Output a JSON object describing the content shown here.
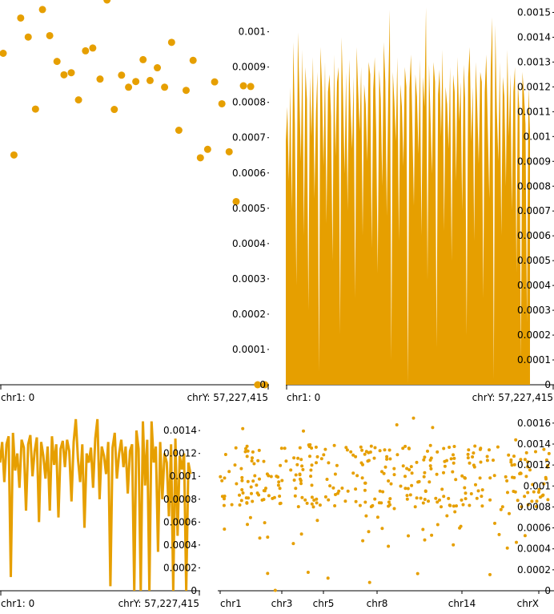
{
  "accent_color": "#e69f00",
  "chart_data": [
    {
      "type": "scatter",
      "x_range_labels": [
        "chr1: 0",
        "chrY: 57,227,415"
      ],
      "ylim": [
        0,
        0.00109
      ],
      "yticks": [
        0,
        0.0001,
        0.0002,
        0.0003,
        0.0004,
        0.0005,
        0.0006,
        0.0007,
        0.0008,
        0.0009,
        0.001
      ],
      "ytick_labels": [
        "0",
        "0.0001",
        "0.0002",
        "0.0003",
        "0.0004",
        "0.0005",
        "0.0006",
        "0.0007",
        "0.0008",
        "0.0009",
        "0.001"
      ],
      "grid": false,
      "x": [
        0.0,
        0.04,
        0.065,
        0.093,
        0.12,
        0.146,
        0.173,
        0.2,
        0.226,
        0.253,
        0.28,
        0.306,
        0.333,
        0.36,
        0.386,
        0.413,
        0.44,
        0.466,
        0.493,
        0.52,
        0.546,
        0.573,
        0.6,
        0.626,
        0.653,
        0.68,
        0.706,
        0.733,
        0.76,
        0.786,
        0.813,
        0.84,
        0.866,
        0.893,
        0.92,
        0.946,
        0.973
      ],
      "y": [
        0.000939,
        0.000651,
        0.001039,
        0.000985,
        0.000781,
        0.001063,
        0.000989,
        0.000916,
        0.000878,
        0.000884,
        0.000807,
        0.000946,
        0.000954,
        0.000866,
        0.00109,
        0.00078,
        0.000877,
        0.000843,
        0.000859,
        0.000921,
        0.000862,
        0.000898,
        0.000843,
        0.00097,
        0.000721,
        0.000834,
        0.000919,
        0.000643,
        0.000667,
        0.000858,
        0.000796,
        0.00066,
        0.000519,
        0.000847,
        0.000845,
        0.0,
        0.0
      ]
    },
    {
      "type": "area",
      "x_range_labels": [
        "chr1: 0",
        "chrY: 57,227,415"
      ],
      "ylim": [
        0,
        0.00155
      ],
      "yticks": [
        0,
        0.0001,
        0.0002,
        0.0003,
        0.0004,
        0.0005,
        0.0006,
        0.0007,
        0.0008,
        0.0009,
        0.001,
        0.0011,
        0.0012,
        0.0013,
        0.0014,
        0.0015
      ],
      "ytick_labels": [
        "0",
        "0.0001",
        "0.0002",
        "0.0003",
        "0.0004",
        "0.0005",
        "0.0006",
        "0.0007",
        "0.0008",
        "0.0009",
        "0.001",
        "0.0011",
        "0.0012",
        "0.0013",
        "0.0014",
        "0.0015"
      ],
      "grid": false,
      "values": [
        0.00098,
        0.00112,
        0.00082,
        0.0012,
        0.0007,
        0.00138,
        0.00105,
        0.0004,
        0.00142,
        0.00118,
        0.0009,
        0.00135,
        0.0006,
        0.00128,
        0.00115,
        0.0003,
        0.00124,
        0.001,
        0.00132,
        0.00075,
        0.0011,
        0.00126,
        5e-05,
        0.00136,
        0.0012,
        0.00088,
        0.0013,
        0.00065,
        0.00118,
        0.00125,
        0.00108,
        0.0005,
        0.00133,
        0.00092,
        0.00122,
        0.00128,
        0.0002,
        0.0014,
        0.00116,
        0.00085,
        0.00126,
        0.0007,
        0.00131,
        0.0011,
        0.00095,
        0.00124,
        0.00035,
        0.00136,
        0.00118,
        0.00102,
        0.00128,
        0.0006,
        0.00121,
        0.00113,
        0.0009,
        0.0013,
        0.00125,
        0.00055,
        0.00119,
        0.00132,
        0.001,
        0.00045,
        0.00127,
        0.00115,
        0.0008,
        0.00138,
        0.00122,
        0.00068,
        0.00118,
        0.00151,
        0.0001,
        0.00126,
        0.00114,
        0.00098,
        0.00132,
        0.00058,
        0.00121,
        0.00112,
        0.00088,
        0.00128,
        0.0012,
        0.0,
        0.00119,
        0.00133,
        0.00104,
        0.00072,
        0.00125,
        0.00116,
        0.00093,
        0.00131,
        0.0006,
        0.00124,
        0.00112,
        0.00152,
        0.00042,
        0.00129,
        0.00108,
        0.00085,
        0.0013,
        0.00122,
        0.00015,
        0.00117,
        0.00127,
        0.001,
        0.00135,
        0.00062,
        0.0012,
        0.00113,
        0.00095,
        0.00128,
        0.0005,
        0.00125,
        0.00118,
        0.00082,
        0.00132,
        0.00106,
        0.00122,
        0.0007,
        0.00129,
        0.00115,
        0.0002,
        0.00124,
        0.00136,
        0.00098,
        0.0012,
        0.00058,
        0.0013,
        0.00112,
        0.00089,
        0.00126,
        0.00122,
        0.00035,
        0.00118,
        0.00133,
        0.00103,
        0.00075,
        0.00127,
        0.00148,
        2e-05,
        0.00145,
        0.0011,
        0.0009,
        0.0013,
        0.0006,
        0.00124,
        0.00116,
        0.0008,
        0.00135,
        0.001,
        0.00125,
        0.0007,
        0.00118,
        0.00128,
        0.00045,
        0.00122,
        0.0011,
        0.0001,
        0.00126,
        0.00117,
        0.00105,
        0.00025,
        0.0012,
        0.00102
      ]
    },
    {
      "type": "line",
      "x_range_labels": [
        "chr1: 0",
        "chrY: 57,227,415"
      ],
      "ylim": [
        0,
        0.00152
      ],
      "yticks": [
        0,
        0.0002,
        0.0004,
        0.0006,
        0.0008,
        0.001,
        0.0012,
        0.0014
      ],
      "ytick_labels": [
        "0",
        "0.0002",
        "0.0004",
        "0.0006",
        "0.0008",
        "0.001",
        "0.0012",
        "0.0014"
      ],
      "grid": false,
      "values": [
        0.00112,
        0.0013,
        0.00095,
        0.00128,
        0.00135,
        0.00012,
        0.00138,
        0.00105,
        0.0012,
        0.0009,
        0.00132,
        0.00125,
        0.0007,
        0.00128,
        0.00136,
        0.001,
        0.00122,
        0.00134,
        0.0006,
        0.0013,
        0.00118,
        0.00098,
        0.00126,
        0.0007,
        0.00135,
        0.0011,
        0.00128,
        0.00064,
        0.00124,
        0.00131,
        0.00108,
        0.00132,
        0.00122,
        0.00078,
        0.0013,
        0.0015,
        0.00115,
        0.00095,
        0.00128,
        0.00055,
        0.0012,
        0.00112,
        0.00125,
        0.0009,
        0.00133,
        0.0015,
        0.0008,
        0.00126,
        0.00118,
        0.00102,
        0.0013,
        4e-05,
        0.00125,
        0.00138,
        0.00098,
        0.0012,
        0.00132,
        0.00108,
        0.00126,
        0.00085,
        0.00122,
        0.00128,
        0.0,
        0.0014,
        0.00124,
        0.0,
        0.00148,
        0.00092,
        0.00132,
        0.0,
        0.00148,
        0.00112,
        0.00126,
        0.00034,
        0.0013,
        0.0008,
        0.0012,
        0.00112,
        0.00065,
        0.00128,
        0.0,
        0.00133,
        0.00048,
        0.00118,
        0.00106,
        0.0012,
        0.0,
        0.00112,
        0.00102
      ]
    },
    {
      "type": "scatter",
      "x_tick_labels": [
        "chr1",
        "chr3",
        "chr5",
        "chr8",
        "chr14",
        "chrX"
      ],
      "ylim": [
        0,
        0.00166
      ],
      "yticks": [
        0,
        0.0002,
        0.0004,
        0.0006,
        0.0008,
        0.001,
        0.0012,
        0.0014,
        0.0016
      ],
      "ytick_labels": [
        "0",
        "0.0002",
        "0.0004",
        "0.0006",
        "0.0008",
        "0.001",
        "0.0012",
        "0.0014",
        "0.0016"
      ],
      "grid": false,
      "points": "scattered per-chromosome values, mostly between 0.0008 and 0.0014, occasional outliers near 0"
    }
  ]
}
